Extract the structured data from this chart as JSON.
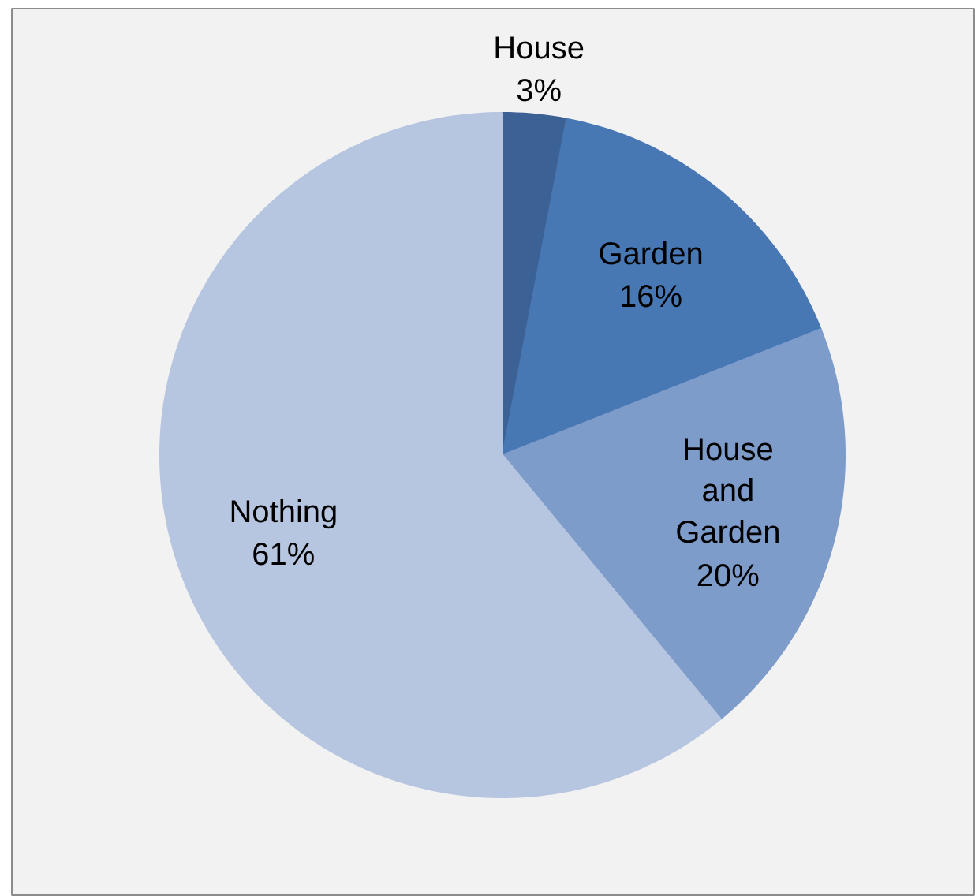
{
  "chart_data": {
    "type": "pie",
    "categories": [
      "House",
      "Garden",
      "House and Garden",
      "Nothing"
    ],
    "values": [
      3,
      16,
      20,
      61
    ],
    "value_labels": [
      "3%",
      "16%",
      "20%",
      "61%"
    ],
    "colors": [
      "#3c6194",
      "#4878b4",
      "#7e9cca",
      "#b6c5e0"
    ]
  }
}
